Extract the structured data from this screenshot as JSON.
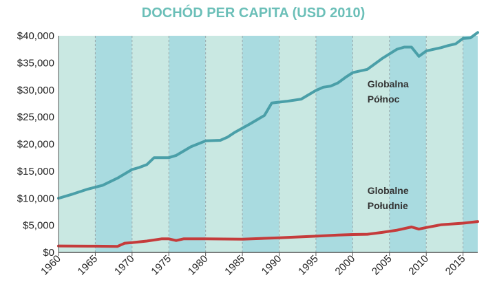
{
  "chart_data": {
    "type": "line",
    "title": "DOCHÓD PER CAPITA (USD 2010)",
    "xlabel": "",
    "ylabel": "",
    "xlim": [
      1960,
      2017
    ],
    "ylim": [
      0,
      40000
    ],
    "x_ticks": [
      1960,
      1965,
      1970,
      1975,
      1980,
      1985,
      1990,
      1995,
      2000,
      2005,
      2010,
      2015
    ],
    "y_ticks": [
      0,
      5000,
      10000,
      15000,
      20000,
      25000,
      30000,
      35000,
      40000
    ],
    "y_tick_labels": [
      "$0",
      "$5,000",
      "$10,000",
      "$15,000",
      "$20,000",
      "$25,000",
      "$30,000",
      "$35,000",
      "$40,000"
    ],
    "grid": "vertical dashed",
    "legend": "none",
    "series": [
      {
        "name": "Globalna Północ",
        "color": "#4a9fa8",
        "x": [
          1960,
          1962,
          1964,
          1966,
          1968,
          1970,
          1971,
          1972,
          1973,
          1974,
          1975,
          1976,
          1978,
          1980,
          1982,
          1983,
          1984,
          1986,
          1988,
          1989,
          1991,
          1993,
          1995,
          1996,
          1997,
          1998,
          1999,
          2000,
          2002,
          2004,
          2006,
          2007,
          2008,
          2009,
          2010,
          2012,
          2013,
          2014,
          2015,
          2016,
          2017
        ],
        "values": [
          10000,
          10800,
          11700,
          12400,
          13700,
          15300,
          15700,
          16200,
          17500,
          17500,
          17500,
          17900,
          19500,
          20600,
          20700,
          21300,
          22200,
          23700,
          25300,
          27600,
          27900,
          28300,
          29900,
          30500,
          30700,
          31300,
          32300,
          33200,
          33800,
          35800,
          37500,
          37900,
          37900,
          36200,
          37200,
          37800,
          38200,
          38500,
          39500,
          39600,
          40600
        ]
      },
      {
        "name": "Globalne Południe",
        "color": "#c53b3b",
        "x": [
          1960,
          1965,
          1968,
          1969,
          1970,
          1972,
          1974,
          1975,
          1976,
          1977,
          1980,
          1985,
          1990,
          1995,
          1998,
          2000,
          2002,
          2004,
          2006,
          2008,
          2009,
          2010,
          2012,
          2015,
          2017
        ],
        "values": [
          1200,
          1150,
          1100,
          1700,
          1800,
          2100,
          2500,
          2500,
          2200,
          2500,
          2500,
          2450,
          2700,
          3000,
          3200,
          3300,
          3350,
          3700,
          4100,
          4700,
          4300,
          4600,
          5100,
          5400,
          5700
        ]
      }
    ],
    "annotations": [
      {
        "lines": [
          "Globalna",
          "Północ"
        ],
        "series": 0
      },
      {
        "lines": [
          "Globalne",
          "Południe"
        ],
        "series": 1
      }
    ]
  }
}
